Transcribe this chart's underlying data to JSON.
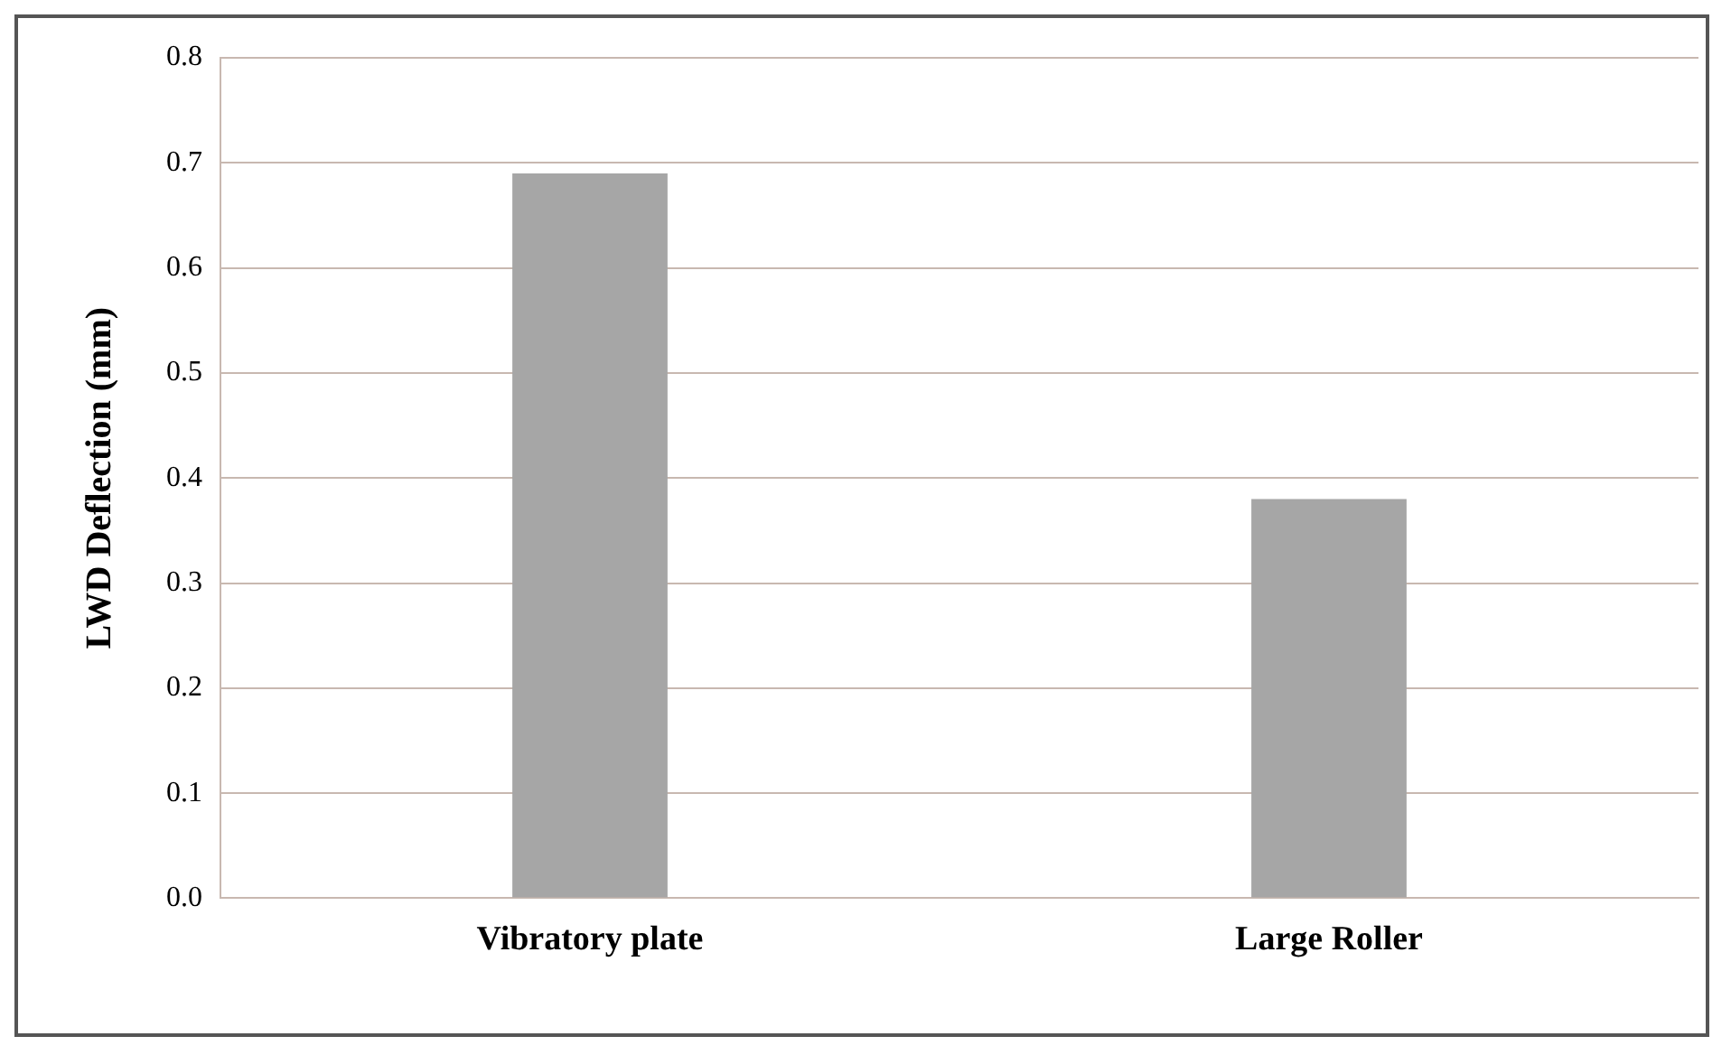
{
  "chart_data": {
    "type": "bar",
    "ylabel": "LWD Deflection (mm)",
    "categories": [
      "Vibratory plate",
      "Large Roller"
    ],
    "values": [
      0.69,
      0.38
    ],
    "color": "#a6a6a6",
    "ylim": [
      0,
      0.8
    ],
    "yticks": [
      {
        "value": 0,
        "label": "0.0"
      },
      {
        "value": 0.1,
        "label": "0.1"
      },
      {
        "value": 0.2,
        "label": "0.2"
      },
      {
        "value": 0.3,
        "label": "0.3"
      },
      {
        "value": 0.4,
        "label": "0.4"
      },
      {
        "value": 0.5,
        "label": "0.5"
      },
      {
        "value": 0.6,
        "label": "0.6"
      },
      {
        "value": 0.7,
        "label": "0.7"
      },
      {
        "value": 0.8,
        "label": "0.8"
      }
    ],
    "grid": "y",
    "legend": false
  }
}
